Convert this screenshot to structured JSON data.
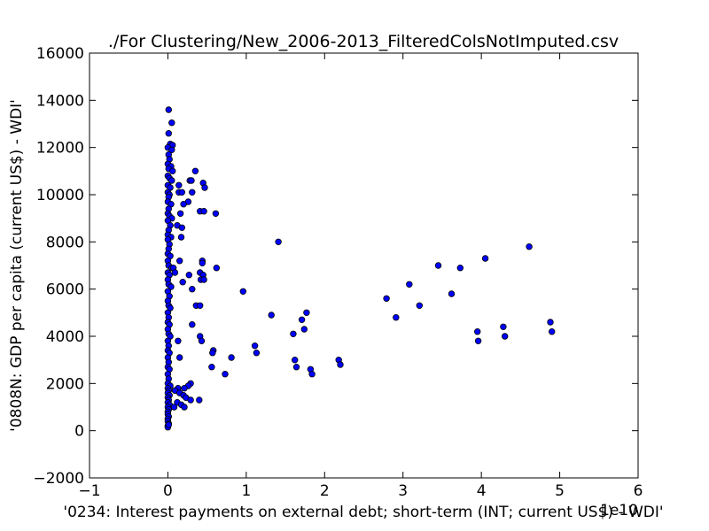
{
  "chart_data": {
    "type": "scatter",
    "title": "./For Clustering/New_2006-2013_FilteredColsNotImputed.csv",
    "xlabel": "'0234: Interest payments on external debt; short-term  (INT; current US$) - WDI'",
    "ylabel": "'0808N: GDP per capita  (current US$) - WDI'",
    "x_offset_label": "1e10",
    "x_scale": 10000000000,
    "xlim": [
      -10000000000,
      60000000000
    ],
    "ylim": [
      -2000,
      16000
    ],
    "x_ticks": [
      -10000000000,
      0,
      10000000000,
      20000000000,
      30000000000,
      40000000000,
      50000000000,
      60000000000
    ],
    "x_tick_labels": [
      "−1",
      "0",
      "1",
      "2",
      "3",
      "4",
      "5",
      "6"
    ],
    "y_ticks": [
      -2000,
      0,
      2000,
      4000,
      6000,
      8000,
      10000,
      12000,
      14000,
      16000
    ],
    "y_tick_labels": [
      "−2000",
      "0",
      "2000",
      "4000",
      "6000",
      "8000",
      "10000",
      "12000",
      "14000",
      "16000"
    ],
    "grid": false,
    "marker_color": "#0000ff",
    "marker_edge_color": "#000000",
    "series": [
      {
        "points": [
          [
            100000000,
            13600
          ],
          [
            500000000,
            13050
          ],
          [
            100000000,
            12600
          ],
          [
            300000000,
            12150
          ],
          [
            600000000,
            12100
          ],
          [
            0,
            12000
          ],
          [
            500000000,
            11900
          ],
          [
            100000000,
            11700
          ],
          [
            200000000,
            11500
          ],
          [
            0,
            11300
          ],
          [
            400000000,
            11200
          ],
          [
            100000000,
            11100
          ],
          [
            600000000,
            11000
          ],
          [
            0,
            10800
          ],
          [
            200000000,
            10700
          ],
          [
            500000000,
            10600
          ],
          [
            0,
            10400
          ],
          [
            300000000,
            10300
          ],
          [
            0,
            10100
          ],
          [
            200000000,
            10000
          ],
          [
            100000000,
            9900
          ],
          [
            0,
            9700
          ],
          [
            400000000,
            9600
          ],
          [
            100000000,
            9400
          ],
          [
            0,
            9200
          ],
          [
            200000000,
            9100
          ],
          [
            500000000,
            9000
          ],
          [
            0,
            8900
          ],
          [
            300000000,
            8700
          ],
          [
            100000000,
            8500
          ],
          [
            0,
            8300
          ],
          [
            400000000,
            8200
          ],
          [
            0,
            8100
          ],
          [
            200000000,
            7900
          ],
          [
            100000000,
            7700
          ],
          [
            0,
            7500
          ],
          [
            300000000,
            7400
          ],
          [
            0,
            7200
          ],
          [
            100000000,
            7000
          ],
          [
            500000000,
            6900
          ],
          [
            0,
            6700
          ],
          [
            200000000,
            6600
          ],
          [
            0,
            6400
          ],
          [
            100000000,
            6200
          ],
          [
            400000000,
            6100
          ],
          [
            0,
            5900
          ],
          [
            200000000,
            5700
          ],
          [
            0,
            5500
          ],
          [
            100000000,
            5300
          ],
          [
            300000000,
            5200
          ],
          [
            0,
            5000
          ],
          [
            100000000,
            4800
          ],
          [
            0,
            4600
          ],
          [
            200000000,
            4500
          ],
          [
            0,
            4300
          ],
          [
            100000000,
            4100
          ],
          [
            300000000,
            4000
          ],
          [
            0,
            3800
          ],
          [
            100000000,
            3600
          ],
          [
            0,
            3400
          ],
          [
            200000000,
            3300
          ],
          [
            0,
            3100
          ],
          [
            100000000,
            2900
          ],
          [
            0,
            2700
          ],
          [
            200000000,
            2600
          ],
          [
            0,
            2400
          ],
          [
            100000000,
            2200
          ],
          [
            0,
            2000
          ],
          [
            300000000,
            1900
          ],
          [
            0,
            1800
          ],
          [
            100000000,
            1700
          ],
          [
            0,
            1600
          ],
          [
            200000000,
            1500
          ],
          [
            0,
            1400
          ],
          [
            100000000,
            1300
          ],
          [
            0,
            1200
          ],
          [
            200000000,
            1100
          ],
          [
            0,
            1000
          ],
          [
            100000000,
            900
          ],
          [
            0,
            800
          ],
          [
            0,
            700
          ],
          [
            100000000,
            600
          ],
          [
            0,
            500
          ],
          [
            0,
            400
          ],
          [
            100000000,
            300
          ],
          [
            0,
            200
          ],
          [
            0,
            150
          ],
          [
            100000000,
            250
          ],
          [
            3500000000,
            11000
          ],
          [
            4500000000,
            10500
          ],
          [
            2800000000,
            10600
          ],
          [
            3000000000,
            10600
          ],
          [
            1400000000,
            10400
          ],
          [
            4700000000,
            10300
          ],
          [
            1400000000,
            10100
          ],
          [
            1800000000,
            10100
          ],
          [
            3100000000,
            10100
          ],
          [
            2600000000,
            9700
          ],
          [
            2000000000,
            9600
          ],
          [
            4100000000,
            9300
          ],
          [
            4600000000,
            9300
          ],
          [
            6100000000,
            9200
          ],
          [
            1600000000,
            9200
          ],
          [
            1200000000,
            8700
          ],
          [
            1800000000,
            8600
          ],
          [
            1700000000,
            8200
          ],
          [
            14100000000,
            8000
          ],
          [
            4400000000,
            7200
          ],
          [
            1500000000,
            7200
          ],
          [
            4400000000,
            7100
          ],
          [
            6200000000,
            6900
          ],
          [
            700000000,
            6900
          ],
          [
            900000000,
            6700
          ],
          [
            4100000000,
            6700
          ],
          [
            4500000000,
            6600
          ],
          [
            2700000000,
            6600
          ],
          [
            4200000000,
            6400
          ],
          [
            4600000000,
            6400
          ],
          [
            1900000000,
            6300
          ],
          [
            3100000000,
            6000
          ],
          [
            9600000000,
            5900
          ],
          [
            3600000000,
            5300
          ],
          [
            4100000000,
            5300
          ],
          [
            13200000000,
            4900
          ],
          [
            17700000000,
            5000
          ],
          [
            17100000000,
            4700
          ],
          [
            17400000000,
            4300
          ],
          [
            16000000000,
            4100
          ],
          [
            3100000000,
            4500
          ],
          [
            1300000000,
            3800
          ],
          [
            4100000000,
            4000
          ],
          [
            4300000000,
            3800
          ],
          [
            11100000000,
            3600
          ],
          [
            5800000000,
            3400
          ],
          [
            5700000000,
            3300
          ],
          [
            11300000000,
            3300
          ],
          [
            1500000000,
            3100
          ],
          [
            8100000000,
            3100
          ],
          [
            16200000000,
            3000
          ],
          [
            16400000000,
            2700
          ],
          [
            5600000000,
            2700
          ],
          [
            18200000000,
            2600
          ],
          [
            7300000000,
            2400
          ],
          [
            18400000000,
            2400
          ],
          [
            21800000000,
            3000
          ],
          [
            22000000000,
            2800
          ],
          [
            2900000000,
            2000
          ],
          [
            2600000000,
            1900
          ],
          [
            2100000000,
            1800
          ],
          [
            1300000000,
            1800
          ],
          [
            900000000,
            1700
          ],
          [
            1500000000,
            1600
          ],
          [
            2000000000,
            1500
          ],
          [
            2300000000,
            1400
          ],
          [
            2900000000,
            1300
          ],
          [
            4000000000,
            1300
          ],
          [
            1200000000,
            1200
          ],
          [
            1700000000,
            1100
          ],
          [
            2100000000,
            1000
          ],
          [
            800000000,
            1000
          ],
          [
            27900000000,
            5600
          ],
          [
            30800000000,
            6200
          ],
          [
            29100000000,
            4800
          ],
          [
            32100000000,
            5300
          ],
          [
            34500000000,
            7000
          ],
          [
            36200000000,
            5800
          ],
          [
            37300000000,
            6900
          ],
          [
            40500000000,
            7300
          ],
          [
            46100000000,
            7800
          ],
          [
            39500000000,
            4200
          ],
          [
            39600000000,
            3800
          ],
          [
            42800000000,
            4400
          ],
          [
            43000000000,
            4000
          ],
          [
            48800000000,
            4600
          ],
          [
            49000000000,
            4200
          ]
        ]
      }
    ]
  }
}
